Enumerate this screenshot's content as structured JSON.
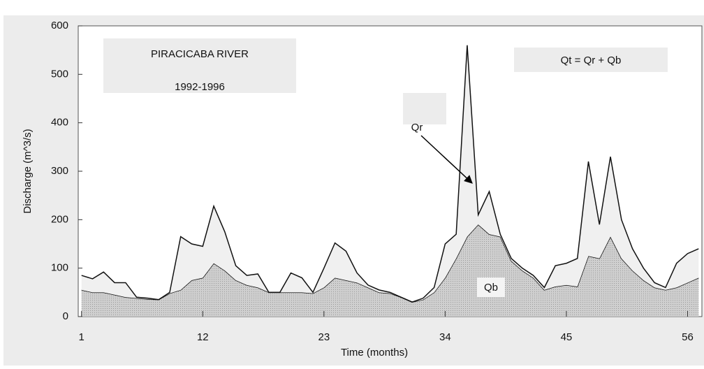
{
  "chart_data": {
    "type": "stacked_area",
    "title": "PIRACICABA RIVER",
    "subtitle": "1992-1996",
    "equation": "Qt = Qr + Qb",
    "x_label": "Time (months)",
    "y_label": "Discharge (m^3/s)",
    "x": [
      1,
      2,
      3,
      4,
      5,
      6,
      7,
      8,
      9,
      10,
      11,
      12,
      13,
      14,
      15,
      16,
      17,
      18,
      19,
      20,
      21,
      22,
      23,
      24,
      25,
      26,
      27,
      28,
      29,
      30,
      31,
      32,
      33,
      34,
      35,
      36,
      37,
      38,
      39,
      40,
      41,
      42,
      43,
      44,
      45,
      46,
      47,
      48,
      49,
      50,
      51,
      52,
      53,
      54,
      55,
      56,
      57
    ],
    "series": [
      {
        "name": "Qb",
        "color": "#c4c4c4",
        "values": [
          55,
          50,
          50,
          45,
          40,
          38,
          36,
          35,
          48,
          55,
          75,
          80,
          110,
          95,
          75,
          65,
          60,
          50,
          50,
          50,
          50,
          48,
          60,
          80,
          75,
          70,
          60,
          50,
          48,
          40,
          30,
          35,
          50,
          80,
          120,
          165,
          190,
          170,
          165,
          115,
          95,
          80,
          55,
          62,
          65,
          62,
          125,
          120,
          165,
          120,
          95,
          75,
          60,
          55,
          60,
          70,
          80
        ]
      },
      {
        "name": "Qr",
        "color": "#f0f0f0",
        "values": [
          30,
          28,
          42,
          25,
          30,
          2,
          2,
          0,
          2,
          110,
          75,
          65,
          118,
          80,
          30,
          20,
          28,
          0,
          0,
          40,
          30,
          2,
          40,
          72,
          60,
          20,
          5,
          5,
          2,
          0,
          0,
          3,
          10,
          70,
          50,
          395,
          20,
          88,
          5,
          5,
          5,
          5,
          5,
          43,
          45,
          58,
          195,
          70,
          165,
          80,
          45,
          25,
          10,
          5,
          50,
          60,
          60
        ]
      }
    ],
    "xlim": [
      0.7,
      57.3
    ],
    "ylim": [
      0,
      600
    ],
    "xticks": [
      1,
      12,
      23,
      34,
      45,
      56
    ],
    "yticks": [
      0,
      100,
      200,
      300,
      400,
      500,
      600
    ]
  }
}
